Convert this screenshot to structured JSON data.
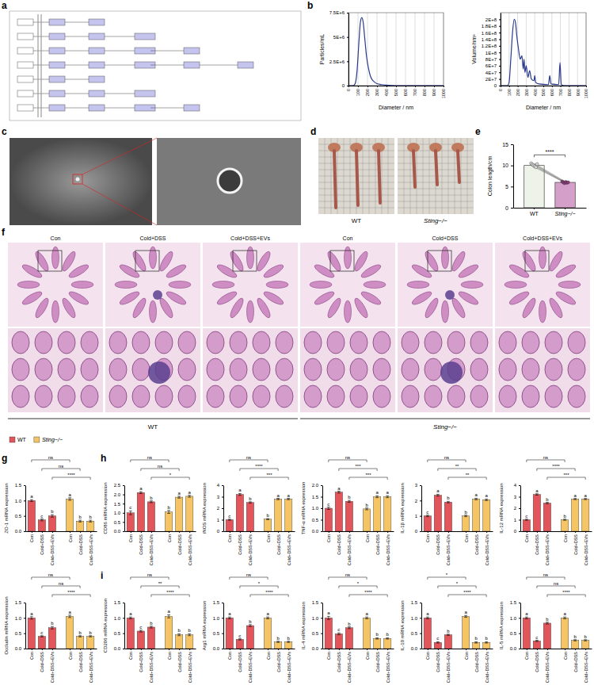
{
  "panel_labels": [
    "a",
    "b",
    "c",
    "d",
    "e",
    "f",
    "g",
    "h",
    "i"
  ],
  "images": {
    "d_labels": [
      "WT",
      "Sting−/−"
    ],
    "f_columns": [
      "Con",
      "Cold+DSS",
      "Cold+DSS+EVs",
      "Con",
      "Cold+DSS",
      "Cold+DSS+EVs"
    ],
    "f_groups": [
      "WT",
      "Sting−/−"
    ]
  },
  "chart_data": [
    {
      "type": "line",
      "x_label": "Diameter / nm",
      "y_label": "Particles/mL",
      "color": "#2a3a8c",
      "grid": "x",
      "x": [
        0,
        50,
        70,
        90,
        110,
        125,
        140,
        155,
        170,
        190,
        210,
        230,
        250,
        270,
        300,
        350,
        400,
        500,
        600,
        700,
        800,
        900,
        1000
      ],
      "values": [
        0,
        0,
        200000,
        1500000,
        4500000,
        6500000,
        7000000,
        6500000,
        5000000,
        3000000,
        1800000,
        1000000,
        600000,
        400000,
        200000,
        100000,
        50000,
        0,
        0,
        0,
        0,
        0,
        0
      ],
      "xlim": [
        0,
        1000
      ],
      "xticks": [
        0,
        100,
        200,
        300,
        400,
        500,
        600,
        700,
        800,
        900,
        1000
      ],
      "ylim": [
        0,
        7500000
      ],
      "yticks": [
        0,
        {
          "value": 2500000,
          "label": "2.5E+6"
        },
        {
          "value": 5000000,
          "label": "5E+6"
        },
        {
          "value": 7500000,
          "label": "7.5E+6"
        }
      ]
    },
    {
      "type": "line",
      "x_label": "Diameter / nm",
      "y_label": "Volume/nm³",
      "color": "#2a3a8c",
      "grid": "x",
      "x": [
        0,
        80,
        100,
        120,
        140,
        160,
        175,
        190,
        210,
        230,
        250,
        265,
        275,
        285,
        300,
        320,
        340,
        360,
        390,
        400,
        410,
        450,
        560,
        575,
        590,
        680,
        695,
        710,
        750,
        1000
      ],
      "values": [
        0,
        0,
        10000000,
        80000000,
        160000000,
        200000000,
        190000000,
        150000000,
        110000000,
        80000000,
        90000000,
        50000000,
        80000000,
        40000000,
        60000000,
        25000000,
        45000000,
        20000000,
        15000000,
        30000000,
        10000000,
        5000000,
        3000000,
        30000000,
        5000000,
        3000000,
        70000000,
        3000000,
        0,
        0
      ],
      "xlim": [
        0,
        1000
      ],
      "xticks": [
        0,
        100,
        200,
        300,
        400,
        500,
        600,
        700,
        800,
        900,
        1000
      ],
      "ylim": [
        0,
        220000000
      ],
      "yticks": [
        0,
        {
          "value": 20000000,
          "label": "2E+7"
        },
        {
          "value": 40000000,
          "label": "4E+7"
        },
        {
          "value": 60000000,
          "label": "6E+7"
        },
        {
          "value": 80000000,
          "label": "8E+7"
        },
        {
          "value": 100000000,
          "label": "1E+8"
        },
        {
          "value": 120000000,
          "label": "1.2E+8"
        },
        {
          "value": 140000000,
          "label": "1.4E+8"
        },
        {
          "value": 160000000,
          "label": "1.6E+8"
        },
        {
          "value": 180000000,
          "label": "1.8E+8"
        },
        {
          "value": 200000000,
          "label": "2E+8"
        }
      ]
    },
    {
      "type": "bar",
      "y_label": "Colon length/cm",
      "categories": [
        "WT",
        "Sting−/−"
      ],
      "values": [
        10,
        6
      ],
      "colors": [
        "#eef3ea",
        "#d4a0c9"
      ],
      "points": [
        [
          10.5,
          10.2,
          10,
          9.8,
          9.6,
          10.3
        ],
        [
          6.2,
          6,
          5.8,
          6.1,
          5.9,
          6
        ]
      ],
      "significance": [
        "****"
      ],
      "ylim": [
        0,
        15
      ],
      "yticks": [
        0,
        5,
        10,
        15
      ]
    },
    {
      "type": "bar",
      "y_label": "ZO-1 mRNA expression",
      "legend": "top-left",
      "categories": [
        "Con",
        "Cold+DSS",
        "Cold+DSS+EVs"
      ],
      "series": [
        {
          "name": "WT",
          "color": "#e2555a",
          "values": [
            1.0,
            0.37,
            0.5
          ],
          "errors": [
            0.03,
            0.03,
            0.04
          ],
          "letters": [
            "a",
            "c",
            "b"
          ]
        },
        {
          "name": "Sting−/−",
          "color": "#f5c565",
          "values": [
            1.05,
            0.33,
            0.33
          ],
          "errors": [
            0.04,
            0.03,
            0.03
          ],
          "letters": [
            "a",
            "b",
            "b"
          ]
        }
      ],
      "significance": [
        "ns",
        "ns",
        "****"
      ],
      "ylim": [
        0,
        1.5
      ],
      "yticks": [
        {
          "value": 0,
          "label": "0.0"
        },
        0.5,
        {
          "value": 1,
          "label": "1.0"
        },
        1.5
      ]
    },
    {
      "type": "bar",
      "y_label": "Occludin mRNA expression",
      "categories": [
        "Con",
        "Cold+DSS",
        "Cold+DSS+EVs"
      ],
      "series": [
        {
          "color": "#e2555a",
          "values": [
            1.0,
            0.4,
            0.68
          ],
          "errors": [
            0.04,
            0.02,
            0.04
          ],
          "letters": [
            "a",
            "c",
            "b"
          ]
        },
        {
          "color": "#f5c565",
          "values": [
            1.05,
            0.4,
            0.4
          ],
          "errors": [
            0.04,
            0.02,
            0.02
          ],
          "letters": [
            "a",
            "b",
            "b"
          ]
        }
      ],
      "significance": [
        "ns",
        "ns",
        "****"
      ],
      "ylim": [
        0,
        1.5
      ],
      "yticks": [
        {
          "value": 0,
          "label": "0.0"
        },
        0.5,
        {
          "value": 1,
          "label": "1.0"
        },
        1.5
      ]
    },
    {
      "type": "bar",
      "y_label": "CD86 mRNA expression",
      "categories": [
        "Con",
        "Cold+DSS",
        "Cold+DSS+EVs"
      ],
      "series": [
        {
          "color": "#e2555a",
          "values": [
            1.0,
            2.1,
            1.6
          ],
          "errors": [
            0.1,
            0.05,
            0.05
          ],
          "letters": [
            "c",
            "a",
            "b"
          ]
        },
        {
          "color": "#f5c565",
          "values": [
            1.05,
            1.85,
            1.9
          ],
          "errors": [
            0.08,
            0.05,
            0.05
          ],
          "letters": [
            "b",
            "a",
            "a"
          ]
        }
      ],
      "significance": [
        "ns",
        "ns",
        "*"
      ],
      "ylim": [
        0,
        2.5
      ],
      "yticks": [
        {
          "value": 0,
          "label": "0.0"
        },
        0.5,
        {
          "value": 1,
          "label": "1.0"
        },
        1.5,
        {
          "value": 2,
          "label": "2.0"
        },
        2.5
      ]
    },
    {
      "type": "bar",
      "y_label": "iNOS mRNA expression",
      "categories": [
        "Con",
        "Cold+DSS",
        "Cold+DSS+EVs"
      ],
      "series": [
        {
          "color": "#e2555a",
          "values": [
            1.0,
            3.2,
            2.5
          ],
          "errors": [
            0.05,
            0.08,
            0.06
          ],
          "letters": [
            "c",
            "a",
            "b"
          ]
        },
        {
          "color": "#f5c565",
          "values": [
            1.05,
            2.8,
            2.8
          ],
          "errors": [
            0.05,
            0.06,
            0.06
          ],
          "letters": [
            "b",
            "a",
            "a"
          ]
        }
      ],
      "significance": [
        "ns",
        "****",
        "***"
      ],
      "ylim": [
        0,
        4
      ],
      "yticks": [
        0,
        1,
        2,
        3,
        4
      ]
    },
    {
      "type": "bar",
      "y_label": "TNF-α mRNA expression",
      "categories": [
        "Con",
        "Cold+DSS",
        "Cold+DSS+EVs"
      ],
      "series": [
        {
          "color": "#e2555a",
          "values": [
            1.0,
            1.7,
            1.3
          ],
          "errors": [
            0.05,
            0.04,
            0.04
          ],
          "letters": [
            "c",
            "a",
            "b"
          ]
        },
        {
          "color": "#f5c565",
          "values": [
            0.97,
            1.5,
            1.5
          ],
          "errors": [
            0.04,
            0.04,
            0.04
          ],
          "letters": [
            "b",
            "a",
            "a"
          ]
        }
      ],
      "significance": [
        "ns",
        "***",
        "***"
      ],
      "ylim": [
        0,
        2
      ],
      "yticks": [
        {
          "value": 0,
          "label": "0.0"
        },
        0.5,
        {
          "value": 1,
          "label": "1.0"
        },
        1.5,
        {
          "value": 2,
          "label": "2.0"
        }
      ]
    },
    {
      "type": "bar",
      "y_label": "IL-1β mRNA expression",
      "categories": [
        "Con",
        "Cold+DSS",
        "Cold+DSS+EVs"
      ],
      "series": [
        {
          "color": "#e2555a",
          "values": [
            1.0,
            2.35,
            1.9
          ],
          "errors": [
            0.05,
            0.06,
            0.05
          ],
          "letters": [
            "c",
            "a",
            "b"
          ]
        },
        {
          "color": "#f5c565",
          "values": [
            1.0,
            2.1,
            2.05
          ],
          "errors": [
            0.05,
            0.05,
            0.05
          ],
          "letters": [
            "b",
            "a",
            "a"
          ]
        }
      ],
      "significance": [
        "ns",
        "**",
        "**"
      ],
      "ylim": [
        0,
        3
      ],
      "yticks": [
        0,
        1,
        2,
        3
      ]
    },
    {
      "type": "bar",
      "y_label": "IL-12 mRNA expression",
      "categories": [
        "Con",
        "Cold+DSS",
        "Cold+DSS+EVs"
      ],
      "series": [
        {
          "color": "#e2555a",
          "values": [
            1.0,
            3.2,
            2.45
          ],
          "errors": [
            0.05,
            0.06,
            0.06
          ],
          "letters": [
            "c",
            "a",
            "b"
          ]
        },
        {
          "color": "#f5c565",
          "values": [
            1.0,
            2.8,
            2.8
          ],
          "errors": [
            0.05,
            0.05,
            0.05
          ],
          "letters": [
            "b",
            "a",
            "a"
          ]
        }
      ],
      "significance": [
        "ns",
        "****",
        "***"
      ],
      "ylim": [
        0,
        4
      ],
      "yticks": [
        0,
        1,
        2,
        3,
        4
      ]
    },
    {
      "type": "bar",
      "y_label": "CD206 mRNA expression",
      "categories": [
        "Con",
        "Cold+DSS",
        "Cold+DSS+EVs"
      ],
      "series": [
        {
          "color": "#e2555a",
          "values": [
            1.0,
            0.57,
            0.7
          ],
          "errors": [
            0.03,
            0.03,
            0.03
          ],
          "letters": [
            "a",
            "c",
            "b"
          ]
        },
        {
          "color": "#f5c565",
          "values": [
            1.05,
            0.45,
            0.45
          ],
          "errors": [
            0.05,
            0.03,
            0.03
          ],
          "letters": [
            "a",
            "b",
            "b"
          ]
        }
      ],
      "significance": [
        "ns",
        "**",
        "****"
      ],
      "ylim": [
        0,
        1.5
      ],
      "yticks": [
        {
          "value": 0,
          "label": "0.0"
        },
        0.5,
        {
          "value": 1,
          "label": "1.0"
        },
        1.5
      ]
    },
    {
      "type": "bar",
      "y_label": "Arg1 mRNA expression",
      "categories": [
        "Con",
        "Cold+DSS",
        "Cold+DSS+EVs"
      ],
      "series": [
        {
          "color": "#e2555a",
          "values": [
            1.0,
            0.3,
            0.75
          ],
          "errors": [
            0.03,
            0.02,
            0.03
          ],
          "letters": [
            "a",
            "c",
            "b"
          ]
        },
        {
          "color": "#f5c565",
          "values": [
            1.0,
            0.22,
            0.22
          ],
          "errors": [
            0.03,
            0.02,
            0.02
          ],
          "letters": [
            "a",
            "b",
            "b"
          ]
        }
      ],
      "significance": [
        "ns",
        "*",
        "****"
      ],
      "ylim": [
        0,
        1.5
      ],
      "yticks": [
        {
          "value": 0,
          "label": "0.0"
        },
        0.5,
        {
          "value": 1,
          "label": "1.0"
        },
        1.5
      ]
    },
    {
      "type": "bar",
      "y_label": "IL-4 mRNA expression",
      "categories": [
        "Con",
        "Cold+DSS",
        "Cold+DSS+EVs"
      ],
      "series": [
        {
          "color": "#e2555a",
          "values": [
            1.0,
            0.48,
            0.68
          ],
          "errors": [
            0.05,
            0.03,
            0.03
          ],
          "letters": [
            "a",
            "c",
            "b"
          ]
        },
        {
          "color": "#f5c565",
          "values": [
            1.0,
            0.33,
            0.33
          ],
          "errors": [
            0.03,
            0.02,
            0.02
          ],
          "letters": [
            "a",
            "b",
            "b"
          ]
        }
      ],
      "significance": [
        "ns",
        "*",
        "****"
      ],
      "ylim": [
        0,
        1.5
      ],
      "yticks": [
        {
          "value": 0,
          "label": "0.0"
        },
        0.5,
        {
          "value": 1,
          "label": "1.0"
        },
        1.5
      ]
    },
    {
      "type": "bar",
      "y_label": "IL-10 mRNA expression",
      "categories": [
        "Con",
        "Cold+DSS",
        "Cold+DSS+EVs"
      ],
      "series": [
        {
          "color": "#e2555a",
          "values": [
            1.0,
            0.2,
            0.45
          ],
          "errors": [
            0.03,
            0.02,
            0.02
          ],
          "letters": [
            "a",
            "c",
            "b"
          ]
        },
        {
          "color": "#f5c565",
          "values": [
            1.05,
            0.2,
            0.2
          ],
          "errors": [
            0.03,
            0.02,
            0.02
          ],
          "letters": [
            "a",
            "b",
            "b"
          ]
        }
      ],
      "significance": [
        "*",
        "*",
        "****"
      ],
      "ylim": [
        0,
        1.5
      ],
      "yticks": [
        {
          "value": 0,
          "label": "0.0"
        },
        0.5,
        {
          "value": 1,
          "label": "1.0"
        },
        1.5
      ]
    },
    {
      "type": "bar",
      "y_label": "IL-5 mRNA expression",
      "categories": [
        "Con",
        "Cold+DSS",
        "Cold+DSS+EVs"
      ],
      "series": [
        {
          "color": "#e2555a",
          "values": [
            1.0,
            0.25,
            0.83
          ],
          "errors": [
            0.03,
            0.02,
            0.03
          ],
          "letters": [
            "a",
            "c",
            "b"
          ]
        },
        {
          "color": "#f5c565",
          "values": [
            1.0,
            0.27,
            0.27
          ],
          "errors": [
            0.03,
            0.02,
            0.02
          ],
          "letters": [
            "a",
            "b",
            "b"
          ]
        }
      ],
      "significance": [
        "ns",
        "ns",
        "****"
      ],
      "ylim": [
        0,
        1.5
      ],
      "yticks": [
        {
          "value": 0,
          "label": "0.0"
        },
        0.5,
        {
          "value": 1,
          "label": "1.0"
        },
        1.5
      ]
    }
  ]
}
